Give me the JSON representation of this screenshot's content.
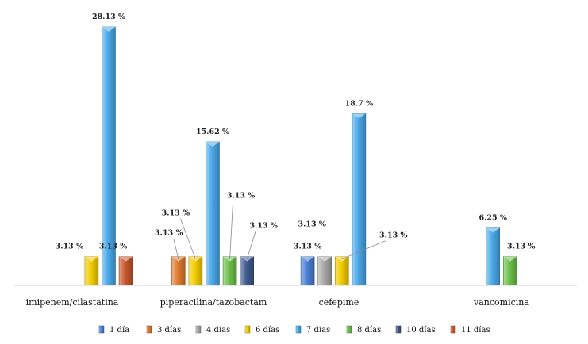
{
  "chart_data": {
    "type": "bar",
    "categories": [
      "imipenem/cilastatina",
      "piperacilina/tazobactam",
      "cefepime",
      "vancomicina"
    ],
    "series": [
      {
        "name": "1 día",
        "color": "#4a7fd6",
        "values": [
          null,
          null,
          3.13,
          null
        ]
      },
      {
        "name": "3 días",
        "color": "#e07a2e",
        "values": [
          null,
          3.13,
          null,
          null
        ]
      },
      {
        "name": "4 días",
        "color": "#a8a8a8",
        "values": [
          null,
          null,
          3.13,
          null
        ]
      },
      {
        "name": "6 días",
        "color": "#f2cd00",
        "values": [
          3.13,
          3.13,
          3.13,
          null
        ]
      },
      {
        "name": "7 días",
        "color": "#49a8e8",
        "values": [
          28.13,
          15.62,
          18.7,
          6.25
        ]
      },
      {
        "name": "8 días",
        "color": "#6cc04a",
        "values": [
          null,
          3.13,
          null,
          3.13
        ]
      },
      {
        "name": "10 días",
        "color": "#3f5a8c",
        "values": [
          null,
          3.13,
          null,
          null
        ]
      },
      {
        "name": "11 días",
        "color": "#c8562c",
        "values": [
          3.13,
          null,
          null,
          null
        ]
      }
    ],
    "value_labels": [
      [
        "3.13 %",
        "28.13 %",
        "3.13 %"
      ],
      [
        "3.13 %",
        "3.13 %",
        "15.62 %",
        "3.13 %",
        "3.13 %"
      ],
      [
        "3.13 %",
        "3.13 %",
        "3.13 %",
        "18.7 %"
      ],
      [
        "6.25 %",
        "3.13 %"
      ]
    ],
    "ylim": [
      0,
      30
    ],
    "grid": false,
    "legend_position": "bottom"
  }
}
